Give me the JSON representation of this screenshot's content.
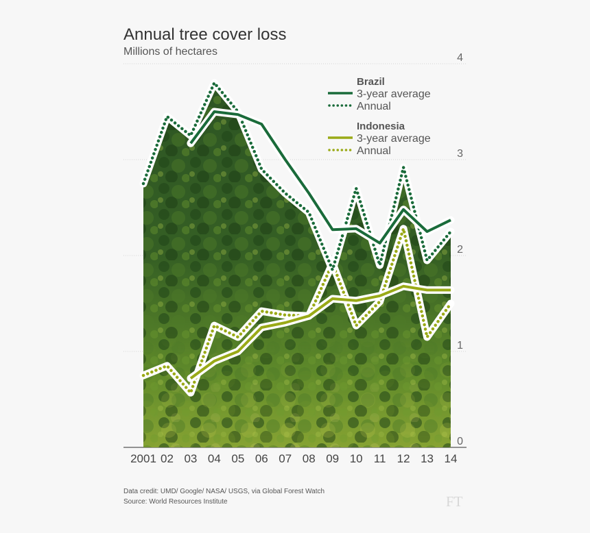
{
  "header": {
    "title": "Annual tree cover loss",
    "subtitle": "Millions of hectares"
  },
  "footer": {
    "credit_line": "Data credit: UMD/ Google/ NASA/ USGS, via Global Forest Watch",
    "source_line": "Source: World Resources Institute",
    "brand": "FT"
  },
  "colors": {
    "background": "#f7f7f7",
    "brazil": "#1a6b3a",
    "indonesia": "#9aaa17",
    "forest_dark": "#274d1d",
    "forest_light": "#9ab33a"
  },
  "chart_data": {
    "type": "line",
    "title": "Annual tree cover loss",
    "subtitle": "Millions of hectares",
    "xlabel": "",
    "ylabel": "",
    "ylim": [
      0,
      4
    ],
    "yticks": [
      0,
      1,
      2,
      3,
      4
    ],
    "y_axis_side": "right",
    "grid": true,
    "legend_position": "top-right",
    "categories": [
      "2001",
      "02",
      "03",
      "04",
      "05",
      "06",
      "07",
      "08",
      "09",
      "10",
      "11",
      "12",
      "13",
      "14"
    ],
    "groups": [
      {
        "name": "Brazil",
        "color": "#1a6b3a",
        "series": [
          {
            "name": "3-year average",
            "style": "solid",
            "values": [
              null,
              null,
              3.17,
              3.5,
              3.47,
              3.37,
              3.0,
              2.65,
              2.27,
              2.28,
              2.13,
              2.48,
              2.25,
              2.37
            ]
          },
          {
            "name": "Annual",
            "style": "dotted",
            "values": [
              2.75,
              3.45,
              3.25,
              3.8,
              3.5,
              2.9,
              2.65,
              2.45,
              1.85,
              2.7,
              1.9,
              2.92,
              1.95,
              2.25
            ]
          }
        ]
      },
      {
        "name": "Indonesia",
        "color": "#9aaa17",
        "series": [
          {
            "name": "3-year average",
            "style": "solid",
            "values": [
              null,
              null,
              0.72,
              0.9,
              1.0,
              1.25,
              1.3,
              1.37,
              1.55,
              1.53,
              1.58,
              1.68,
              1.64,
              1.64
            ]
          },
          {
            "name": "Annual",
            "style": "dotted",
            "values": [
              0.75,
              0.85,
              0.57,
              1.27,
              1.15,
              1.42,
              1.38,
              1.37,
              1.92,
              1.27,
              1.52,
              2.28,
              1.15,
              1.5
            ]
          }
        ]
      }
    ]
  }
}
